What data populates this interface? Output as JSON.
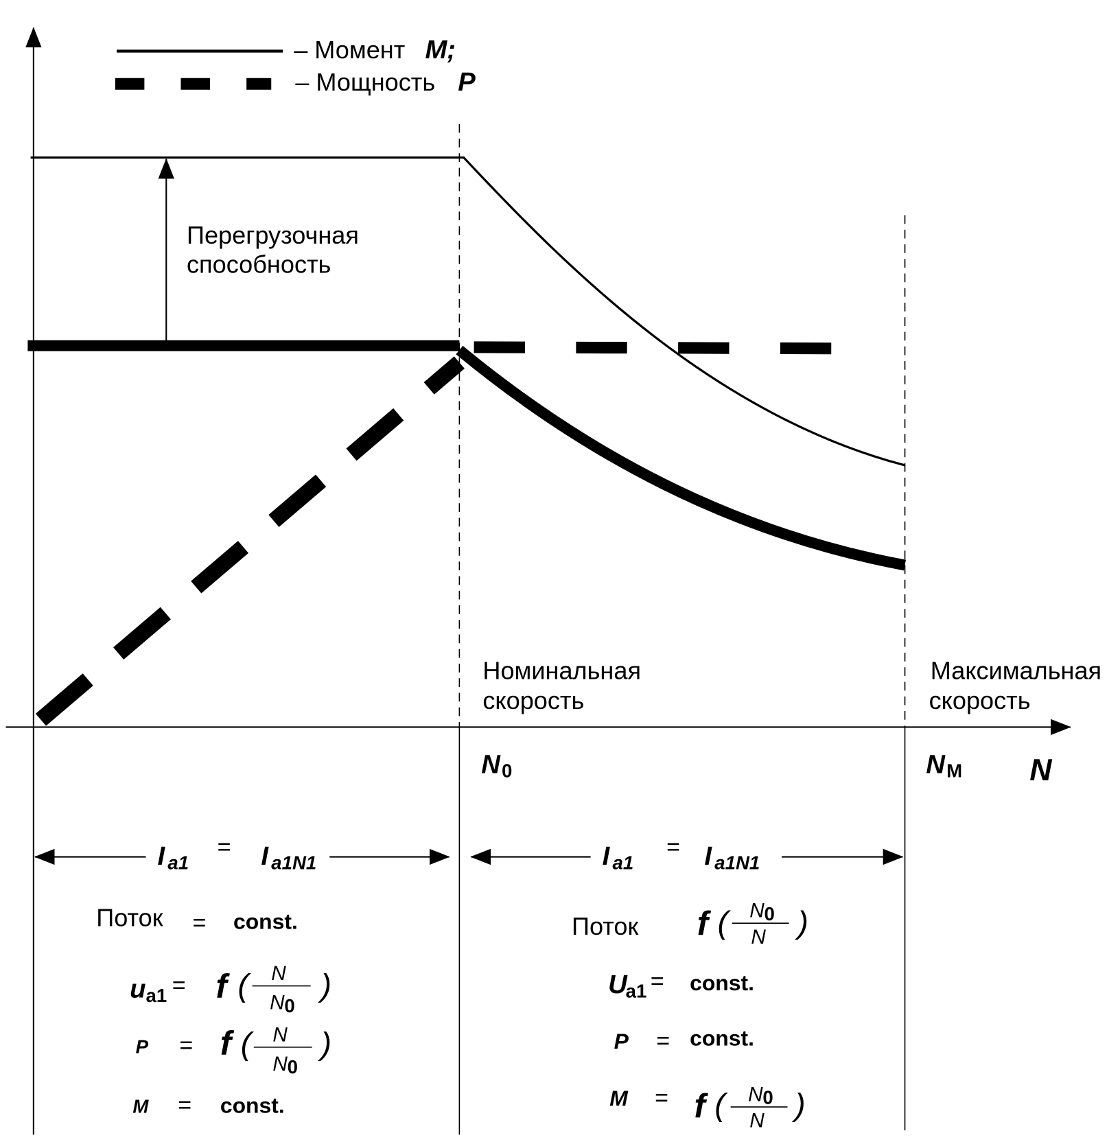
{
  "legend": [
    {
      "label": "– Момент",
      "symbol": "M;"
    },
    {
      "label": "– Мощность",
      "symbol": "P"
    }
  ],
  "annotations": {
    "overload": [
      "Перегрузочная",
      "способность"
    ],
    "nominal_speed": [
      "Номинальная",
      "скорость"
    ],
    "max_speed": [
      "Максимальная",
      "скорость"
    ]
  },
  "axis": {
    "x_label": "N",
    "n0": [
      "N",
      "0"
    ],
    "nm": [
      "N",
      "M"
    ]
  },
  "zones": [
    {
      "current": [
        "I",
        "a1",
        "=",
        "I",
        "a1N1"
      ],
      "flux": [
        "Поток",
        "=",
        "const."
      ],
      "voltage": [
        "u",
        "a1",
        "=",
        "f",
        "(",
        "N",
        "N",
        "0",
        ")"
      ],
      "power": [
        "P",
        "=",
        "f",
        "(",
        "N",
        "N",
        "0",
        ")"
      ],
      "torque": [
        "M",
        "=",
        "const."
      ]
    },
    {
      "current": [
        "I",
        "a1",
        "=",
        "I",
        "a1N1"
      ],
      "flux": [
        "Поток",
        "f",
        "(",
        "N",
        "0",
        "N",
        ")"
      ],
      "voltage": [
        "U",
        "a1",
        "=",
        "const."
      ],
      "power": [
        "P",
        "=",
        "const."
      ],
      "torque": [
        "M",
        "=",
        "f",
        "(",
        "N",
        "0",
        "N",
        ")"
      ]
    }
  ]
}
